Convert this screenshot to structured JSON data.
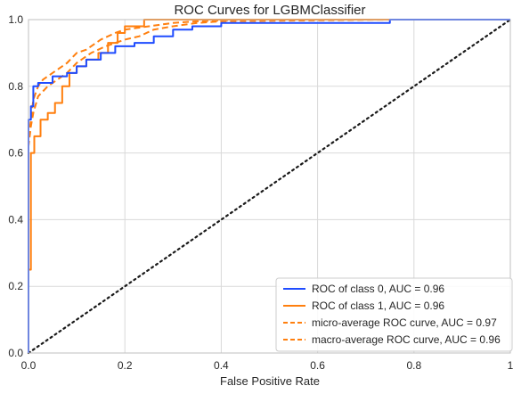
{
  "chart_data": {
    "type": "line",
    "title": "ROC Curves for LGBMClassifier",
    "xlabel": "False Positive Rate",
    "ylabel": "",
    "xlim": [
      0,
      1
    ],
    "ylim": [
      0,
      1
    ],
    "xticks": [
      "0.0",
      "0.2",
      "0.4",
      "0.6",
      "0.8",
      "1"
    ],
    "yticks": [
      "0.0",
      "0.2",
      "0.4",
      "0.6",
      "0.8",
      "1.0"
    ],
    "xtick_values": [
      0,
      0.2,
      0.4,
      0.6,
      0.8,
      1
    ],
    "ytick_values": [
      0,
      0.2,
      0.4,
      0.6,
      0.8,
      1.0
    ],
    "grid": true,
    "legend_position": "bottom-right",
    "colors": {
      "blue": "#1f4cff",
      "orange": "#ff7f0e",
      "diagonal": "#1a1a1a",
      "grid": "#d9d9d9"
    },
    "series": [
      {
        "name": "ROC of class 0, AUC = 0.96",
        "color": "#1f4cff",
        "dash": "solid",
        "x": [
          0,
          0.0,
          0.005,
          0.005,
          0.01,
          0.01,
          0.02,
          0.02,
          0.05,
          0.05,
          0.08,
          0.08,
          0.1,
          0.1,
          0.12,
          0.12,
          0.15,
          0.15,
          0.18,
          0.18,
          0.22,
          0.22,
          0.26,
          0.26,
          0.3,
          0.3,
          0.34,
          0.34,
          0.4,
          0.4,
          0.75,
          0.75,
          1.0
        ],
        "y": [
          0,
          0.7,
          0.7,
          0.74,
          0.74,
          0.8,
          0.8,
          0.81,
          0.81,
          0.83,
          0.83,
          0.84,
          0.84,
          0.86,
          0.86,
          0.88,
          0.88,
          0.9,
          0.9,
          0.92,
          0.92,
          0.93,
          0.93,
          0.95,
          0.95,
          0.97,
          0.97,
          0.98,
          0.98,
          0.99,
          0.99,
          1.0,
          1.0
        ]
      },
      {
        "name": "ROC of class 1, AUC = 0.96",
        "color": "#ff7f0e",
        "dash": "solid",
        "x": [
          0,
          0.0,
          0.005,
          0.005,
          0.012,
          0.012,
          0.025,
          0.025,
          0.04,
          0.04,
          0.055,
          0.055,
          0.07,
          0.07,
          0.085,
          0.085,
          0.1,
          0.1,
          0.12,
          0.12,
          0.145,
          0.145,
          0.165,
          0.165,
          0.185,
          0.185,
          0.2,
          0.2,
          0.24,
          0.24,
          1.0
        ],
        "y": [
          0,
          0.25,
          0.25,
          0.6,
          0.6,
          0.65,
          0.65,
          0.7,
          0.7,
          0.72,
          0.72,
          0.75,
          0.75,
          0.8,
          0.8,
          0.84,
          0.84,
          0.86,
          0.86,
          0.88,
          0.88,
          0.9,
          0.9,
          0.93,
          0.93,
          0.96,
          0.96,
          0.98,
          0.98,
          1.0,
          1.0
        ]
      },
      {
        "name": "micro-average ROC curve, AUC = 0.97",
        "color": "#ff7f0e",
        "dash": "dashed",
        "x": [
          0,
          0.0,
          0.005,
          0.01,
          0.02,
          0.03,
          0.05,
          0.06,
          0.08,
          0.1,
          0.12,
          0.15,
          0.18,
          0.2,
          0.25,
          0.3,
          0.35,
          0.45,
          0.6,
          0.75,
          1.0
        ],
        "y": [
          0,
          0.64,
          0.7,
          0.76,
          0.8,
          0.82,
          0.84,
          0.85,
          0.87,
          0.9,
          0.91,
          0.94,
          0.96,
          0.97,
          0.98,
          0.99,
          0.995,
          1.0,
          1.0,
          1.0,
          1.0
        ]
      },
      {
        "name": "macro-average ROC curve, AUC = 0.96",
        "color": "#ff7f0e",
        "dash": "dashed",
        "x": [
          0,
          0.0,
          0.005,
          0.01,
          0.02,
          0.04,
          0.06,
          0.08,
          0.1,
          0.13,
          0.16,
          0.2,
          0.23,
          0.26,
          0.3,
          0.35,
          0.4,
          0.75,
          1.0
        ],
        "y": [
          0,
          0.62,
          0.68,
          0.72,
          0.77,
          0.8,
          0.82,
          0.84,
          0.87,
          0.9,
          0.92,
          0.94,
          0.95,
          0.97,
          0.98,
          0.99,
          0.995,
          1.0,
          1.0
        ]
      },
      {
        "name": "",
        "color": "#1a1a1a",
        "dash": "dotted",
        "x": [
          0,
          1
        ],
        "y": [
          0,
          1
        ]
      }
    ]
  }
}
